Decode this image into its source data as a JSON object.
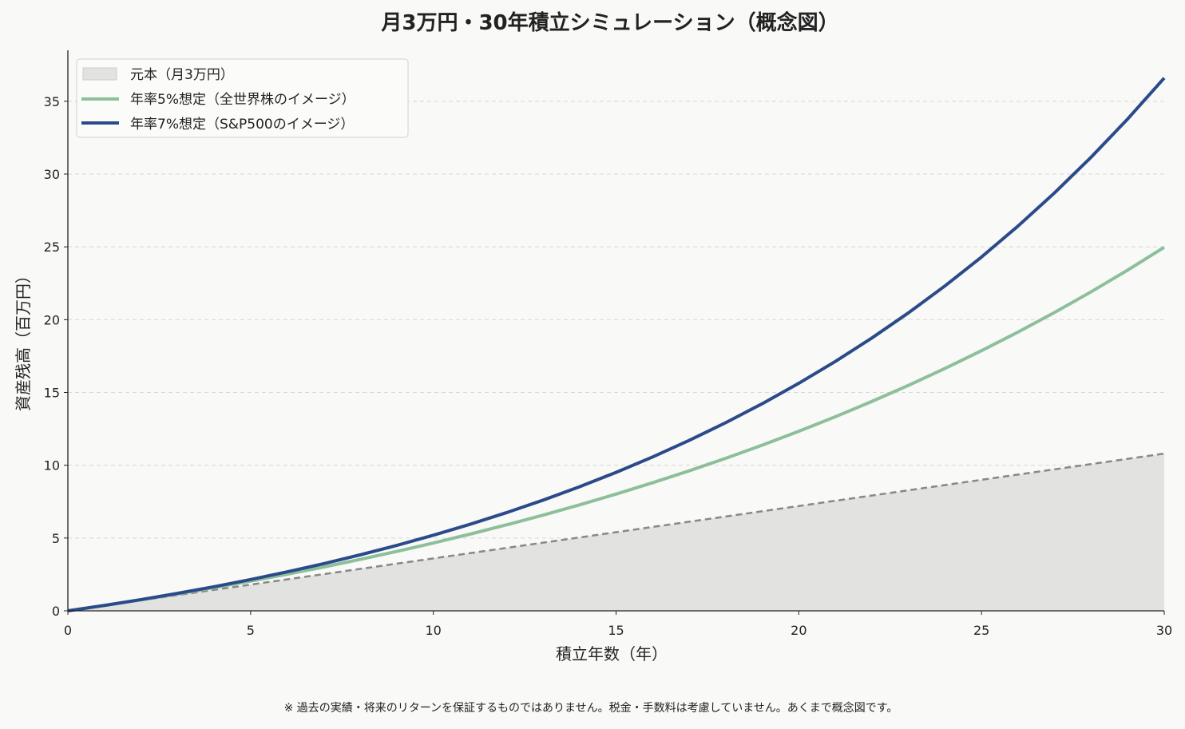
{
  "chart_data": {
    "type": "line",
    "title": "月3万円・30年積立シミュレーション（概念図）",
    "xlabel": "積立年数（年）",
    "ylabel": "資産残高（百万円）",
    "xlim": [
      0,
      30
    ],
    "ylim": [
      0,
      38.5
    ],
    "xticks": [
      0,
      5,
      10,
      15,
      20,
      25,
      30
    ],
    "yticks": [
      0,
      5,
      10,
      15,
      20,
      25,
      30,
      35
    ],
    "grid": "horizontal-dashed",
    "legend_position": "top-left",
    "x": [
      0,
      1,
      2,
      3,
      4,
      5,
      6,
      7,
      8,
      9,
      10,
      11,
      12,
      13,
      14,
      15,
      16,
      17,
      18,
      19,
      20,
      21,
      22,
      23,
      24,
      25,
      26,
      27,
      28,
      29,
      30
    ],
    "series": [
      {
        "name": "元本（月3万円）",
        "kind": "area-dashed",
        "color": "#888888",
        "fill": "#e2e2e0",
        "values": [
          0,
          0.36,
          0.72,
          1.08,
          1.44,
          1.8,
          2.16,
          2.52,
          2.88,
          3.24,
          3.6,
          3.96,
          4.32,
          4.68,
          5.04,
          5.4,
          5.76,
          6.12,
          6.48,
          6.84,
          7.2,
          7.56,
          7.92,
          8.28,
          8.64,
          9.0,
          9.36,
          9.72,
          10.08,
          10.44,
          10.8
        ]
      },
      {
        "name": "年率5%想定（全世界株のイメージ）",
        "kind": "line",
        "color": "#8cbf9a",
        "values": [
          0,
          0.368,
          0.756,
          1.163,
          1.59,
          2.04,
          2.513,
          3.01,
          3.532,
          4.081,
          4.658,
          5.265,
          5.903,
          6.573,
          7.278,
          8.019,
          8.797,
          9.616,
          10.476,
          11.381,
          12.331,
          13.331,
          14.381,
          15.485,
          16.646,
          17.866,
          19.148,
          20.496,
          21.913,
          23.403,
          24.969
        ]
      },
      {
        "name": "年率7%想定（S&P500のイメージ）",
        "kind": "line",
        "color": "#2b4a8a",
        "values": [
          0,
          0.372,
          0.77,
          1.198,
          1.656,
          2.148,
          2.675,
          3.24,
          3.846,
          4.496,
          5.193,
          5.94,
          6.741,
          7.6,
          8.521,
          9.509,
          10.568,
          11.704,
          12.922,
          14.228,
          15.628,
          17.13,
          18.74,
          20.466,
          22.317,
          24.302,
          26.431,
          28.713,
          31.161,
          33.785,
          36.598
        ]
      }
    ]
  },
  "footnote": "※ 過去の実績・将来のリターンを保証するものではありません。税金・手数料は考慮していません。あくまで概念図です。",
  "footnote_color": "#d9534f"
}
